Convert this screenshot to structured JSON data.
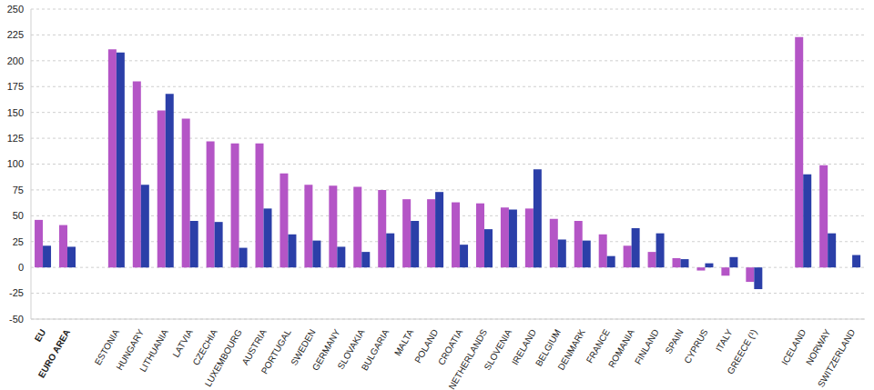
{
  "chart_data": {
    "type": "bar",
    "categories": [
      "EU",
      "EURO AREA",
      null,
      "ESTONIA",
      "HUNGARY",
      "LITHUANIA",
      "LATVIA",
      "CZECHIA",
      "LUXEMBOURG",
      "AUSTRIA",
      "PORTUGAL",
      "SWEDEN",
      "GERMANY",
      "SLOVAKIA",
      "BULGARIA",
      "MALTA",
      "POLAND",
      "CROATIA",
      "NETHERLANDS",
      "SLOVENIA",
      "IRELAND",
      "BELGIUM",
      "DENMARK",
      "FRANCE",
      "ROMANIA",
      "FINLAND",
      "SPAIN",
      "CYPRUS",
      "ITALY",
      "GREECE (¹)",
      null,
      "ICELAND",
      "NORWAY",
      "SWITZERLAND"
    ],
    "series": [
      {
        "color": "#b455c6",
        "values": [
          46,
          41,
          null,
          211,
          180,
          152,
          144,
          122,
          120,
          120,
          91,
          80,
          79,
          78,
          75,
          66,
          66,
          63,
          62,
          58,
          57,
          47,
          45,
          32,
          21,
          15,
          9,
          -3,
          -8,
          -14,
          null,
          223,
          99,
          null
        ]
      },
      {
        "color": "#2b3fa8",
        "values": [
          21,
          20,
          null,
          208,
          80,
          168,
          45,
          44,
          19,
          57,
          32,
          26,
          20,
          15,
          33,
          45,
          73,
          22,
          37,
          56,
          95,
          27,
          26,
          11,
          38,
          33,
          8,
          4,
          10,
          -21,
          null,
          90,
          33,
          12
        ]
      }
    ],
    "ylim": [
      -50,
      250
    ],
    "yticks": [
      -50,
      -25,
      0,
      25,
      50,
      75,
      100,
      125,
      150,
      175,
      200,
      225,
      250
    ],
    "grid": true
  }
}
